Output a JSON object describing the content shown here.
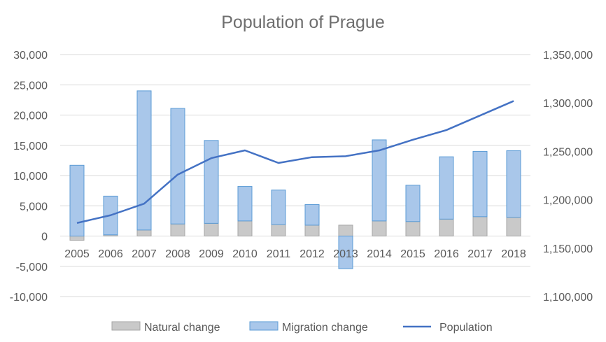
{
  "chart_data": {
    "type": "bar",
    "title": "Population of Prague",
    "categories": [
      "2005",
      "2006",
      "2007",
      "2008",
      "2009",
      "2010",
      "2011",
      "2012",
      "2013",
      "2014",
      "2015",
      "2016",
      "2017",
      "2018"
    ],
    "series": [
      {
        "name": "Natural change",
        "kind": "stacked-bar",
        "axis": "left",
        "values": [
          -700,
          200,
          1000,
          2000,
          2100,
          2500,
          1900,
          1800,
          1800,
          2500,
          2400,
          2800,
          3200,
          3100
        ]
      },
      {
        "name": "Migration change",
        "kind": "stacked-bar",
        "axis": "left",
        "values": [
          11700,
          6400,
          23000,
          19100,
          13700,
          5700,
          5700,
          3400,
          -5400,
          13400,
          6000,
          10300,
          10800,
          11000
        ]
      },
      {
        "name": "Population",
        "kind": "line",
        "axis": "right",
        "values": [
          1176000,
          1184000,
          1196000,
          1226000,
          1243000,
          1251000,
          1238000,
          1244000,
          1245000,
          1251000,
          1262000,
          1272000,
          1287000,
          1302000
        ]
      }
    ],
    "y_left": {
      "min": -10000,
      "max": 30000,
      "step": 5000,
      "tick_labels": [
        "-10,000",
        "-5,000",
        "0",
        "5,000",
        "10,000",
        "15,000",
        "20,000",
        "25,000",
        "30,000"
      ]
    },
    "y_right": {
      "min": 1100000,
      "max": 1350000,
      "step": 50000,
      "tick_labels": [
        "1,100,000",
        "1,150,000",
        "1,200,000",
        "1,250,000",
        "1,300,000",
        "1,350,000"
      ]
    },
    "grid": true,
    "legend_position": "bottom",
    "colors": {
      "natural": "#c9c9c9",
      "natural_edge": "#a6a6a6",
      "migration": "#a9c7ea",
      "migration_edge": "#5b9bd5",
      "population": "#4472c4",
      "grid": "#d9d9d9"
    }
  }
}
